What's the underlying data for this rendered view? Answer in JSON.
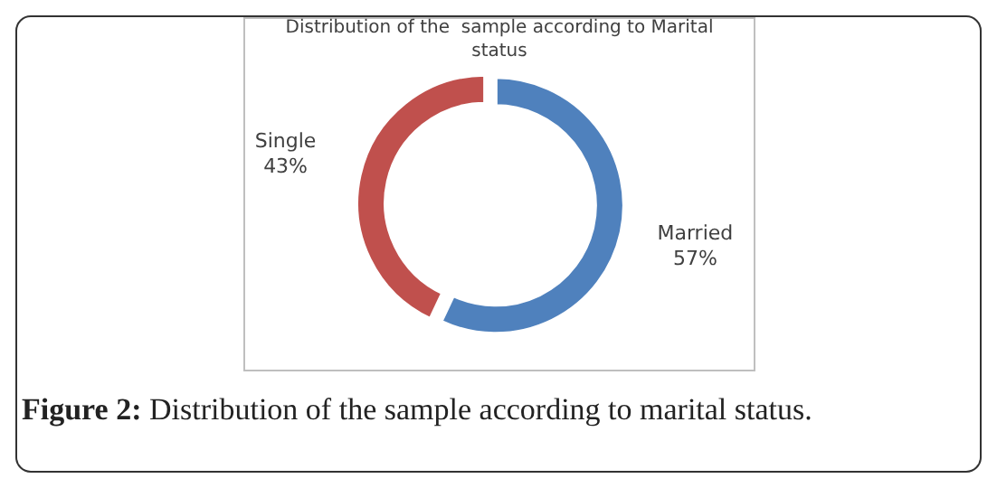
{
  "chart_data": {
    "type": "donut",
    "title": "Distribution of the  sample according to Marital status",
    "categories": [
      "Married",
      "Single"
    ],
    "values": [
      57,
      43
    ],
    "value_labels": [
      "57%",
      "43%"
    ],
    "colors": [
      "#4f81bd",
      "#c0504d"
    ],
    "annotations": [
      "Figure 2: Distribution of the sample according to marital status."
    ]
  }
}
